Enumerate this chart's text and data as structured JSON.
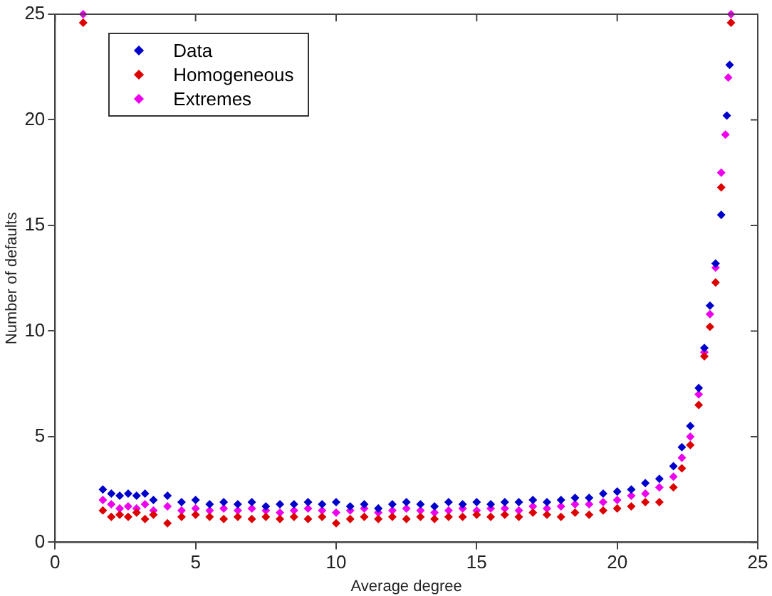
{
  "chart_data": {
    "type": "scatter",
    "xlabel": "Average degree",
    "ylabel": "Number of defaults",
    "xlim": [
      0,
      25
    ],
    "ylim": [
      0,
      25
    ],
    "xticks": [
      0,
      5,
      10,
      15,
      20,
      25
    ],
    "yticks": [
      0,
      5,
      10,
      15,
      20,
      25
    ],
    "grid": false,
    "legend": "top left",
    "marker": "diamond",
    "series": [
      {
        "name": "Data",
        "color": "#0000cc",
        "x": [
          1.7,
          2.0,
          2.3,
          2.6,
          2.9,
          3.2,
          3.5,
          4.0,
          4.5,
          5.0,
          5.5,
          6.0,
          6.5,
          7.0,
          7.5,
          8.0,
          8.5,
          9.0,
          9.5,
          10.0,
          10.5,
          11.0,
          11.5,
          12.0,
          12.5,
          13.0,
          13.5,
          14.0,
          14.5,
          15.0,
          15.5,
          16.0,
          16.5,
          17.0,
          17.5,
          18.0,
          18.5,
          19.0,
          19.5,
          20.0,
          20.5,
          21.0,
          21.5,
          22.0,
          22.3,
          22.6,
          22.9,
          23.1,
          23.3,
          23.5,
          23.7,
          23.9,
          24.0
        ],
        "values": [
          2.5,
          2.3,
          2.2,
          2.3,
          2.2,
          2.3,
          2.0,
          2.2,
          1.9,
          2.0,
          1.8,
          1.9,
          1.8,
          1.9,
          1.7,
          1.8,
          1.8,
          1.9,
          1.8,
          1.9,
          1.7,
          1.8,
          1.6,
          1.8,
          1.9,
          1.8,
          1.7,
          1.9,
          1.8,
          1.9,
          1.8,
          1.9,
          1.9,
          2.0,
          1.9,
          2.0,
          2.1,
          2.1,
          2.3,
          2.4,
          2.5,
          2.8,
          3.0,
          3.6,
          4.5,
          5.5,
          7.3,
          9.2,
          11.2,
          13.2,
          15.5,
          20.2,
          22.6
        ]
      },
      {
        "name": "Homogeneous",
        "color": "#dd0000",
        "x": [
          1.0,
          1.7,
          2.0,
          2.3,
          2.6,
          2.9,
          3.2,
          3.5,
          4.0,
          4.5,
          5.0,
          5.5,
          6.0,
          6.5,
          7.0,
          7.5,
          8.0,
          8.5,
          9.0,
          9.5,
          10.0,
          10.5,
          11.0,
          11.5,
          12.0,
          12.5,
          13.0,
          13.5,
          14.0,
          14.5,
          15.0,
          15.5,
          16.0,
          16.5,
          17.0,
          17.5,
          18.0,
          18.5,
          19.0,
          19.5,
          20.0,
          20.5,
          21.0,
          21.5,
          22.0,
          22.3,
          22.6,
          22.9,
          23.1,
          23.3,
          23.5,
          23.7,
          24.05
        ],
        "values": [
          24.6,
          1.5,
          1.2,
          1.3,
          1.2,
          1.4,
          1.1,
          1.3,
          0.9,
          1.2,
          1.3,
          1.2,
          1.1,
          1.2,
          1.1,
          1.2,
          1.1,
          1.2,
          1.1,
          1.2,
          0.9,
          1.1,
          1.2,
          1.1,
          1.2,
          1.1,
          1.2,
          1.1,
          1.2,
          1.2,
          1.3,
          1.2,
          1.3,
          1.2,
          1.4,
          1.3,
          1.2,
          1.4,
          1.3,
          1.5,
          1.6,
          1.7,
          1.9,
          1.9,
          2.6,
          3.5,
          4.6,
          6.5,
          8.8,
          10.2,
          12.3,
          16.8,
          24.6
        ]
      },
      {
        "name": "Extremes",
        "color": "#ee00ee",
        "x": [
          1.0,
          1.7,
          2.0,
          2.3,
          2.6,
          2.9,
          3.2,
          3.5,
          4.0,
          4.5,
          5.0,
          5.5,
          6.0,
          6.5,
          7.0,
          7.5,
          8.0,
          8.5,
          9.0,
          9.5,
          10.0,
          10.5,
          11.0,
          11.5,
          12.0,
          12.5,
          13.0,
          13.5,
          14.0,
          14.5,
          15.0,
          15.5,
          16.0,
          16.5,
          17.0,
          17.5,
          18.0,
          18.5,
          19.0,
          19.5,
          20.0,
          20.5,
          21.0,
          21.5,
          22.0,
          22.3,
          22.6,
          22.9,
          23.1,
          23.3,
          23.5,
          23.7,
          23.85,
          23.95,
          24.05
        ],
        "values": [
          25,
          2.0,
          1.8,
          1.6,
          1.7,
          1.6,
          1.8,
          1.5,
          1.7,
          1.5,
          1.6,
          1.5,
          1.6,
          1.5,
          1.6,
          1.5,
          1.4,
          1.5,
          1.6,
          1.5,
          1.4,
          1.5,
          1.6,
          1.4,
          1.5,
          1.6,
          1.5,
          1.4,
          1.5,
          1.6,
          1.5,
          1.6,
          1.6,
          1.5,
          1.7,
          1.6,
          1.7,
          1.8,
          1.8,
          1.9,
          2.0,
          2.2,
          2.3,
          2.6,
          3.1,
          4.0,
          5.0,
          7.0,
          9.0,
          10.8,
          13.0,
          17.5,
          19.3,
          22.0,
          25
        ]
      }
    ]
  }
}
